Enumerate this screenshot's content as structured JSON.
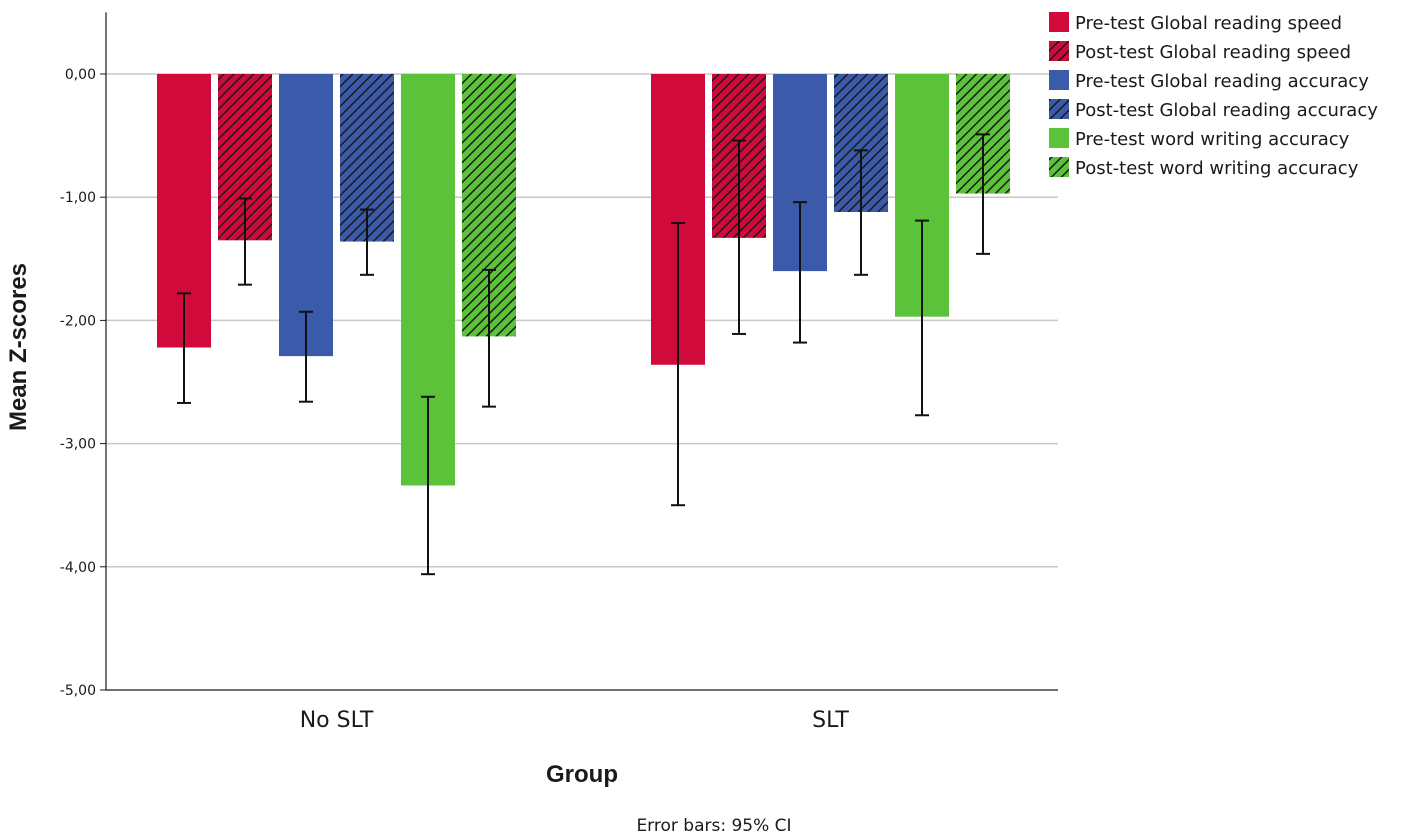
{
  "chart_data": {
    "type": "bar",
    "title": "",
    "xlabel": "Group",
    "ylabel": "Mean Z-scores",
    "ylim": [
      -5,
      0.5
    ],
    "yticks": [
      0,
      -1,
      -2,
      -3,
      -4,
      -5
    ],
    "ytick_labels": [
      "0,00",
      "-1,00",
      "-2,00",
      "-3,00",
      "-4,00",
      "-5,00"
    ],
    "grid": true,
    "legend_position": "top-right",
    "categories": [
      "No SLT",
      "SLT"
    ],
    "series": [
      {
        "name": "Pre-test Global reading speed",
        "color": "#d10a3c",
        "hatched": false,
        "values": [
          -2.22,
          -2.36
        ],
        "ci_low": [
          -2.67,
          -3.5
        ],
        "ci_high": [
          -1.78,
          -1.21
        ]
      },
      {
        "name": "Post-test Global reading speed",
        "color": "#d10a3c",
        "hatched": true,
        "values": [
          -1.35,
          -1.33
        ],
        "ci_low": [
          -1.71,
          -2.11
        ],
        "ci_high": [
          -1.01,
          -0.54
        ]
      },
      {
        "name": "Pre-test Global reading accuracy",
        "color": "#3c5aaa",
        "hatched": false,
        "values": [
          -2.29,
          -1.6
        ],
        "ci_low": [
          -2.66,
          -2.18
        ],
        "ci_high": [
          -1.93,
          -1.04
        ]
      },
      {
        "name": "Post-test Global reading accuracy",
        "color": "#3c5aaa",
        "hatched": true,
        "values": [
          -1.36,
          -1.12
        ],
        "ci_low": [
          -1.63,
          -1.63
        ],
        "ci_high": [
          -1.1,
          -0.62
        ]
      },
      {
        "name": "Pre-test word writing accuracy",
        "color": "#5cc23a",
        "hatched": false,
        "values": [
          -3.34,
          -1.97
        ],
        "ci_low": [
          -4.06,
          -2.77
        ],
        "ci_high": [
          -2.62,
          -1.19
        ]
      },
      {
        "name": "Post-test word writing accuracy",
        "color": "#5cc23a",
        "hatched": true,
        "values": [
          -2.13,
          -0.97
        ],
        "ci_low": [
          -2.7,
          -1.46
        ],
        "ci_high": [
          -1.59,
          -0.49
        ]
      }
    ],
    "note": "Error bars: 95% CI"
  }
}
